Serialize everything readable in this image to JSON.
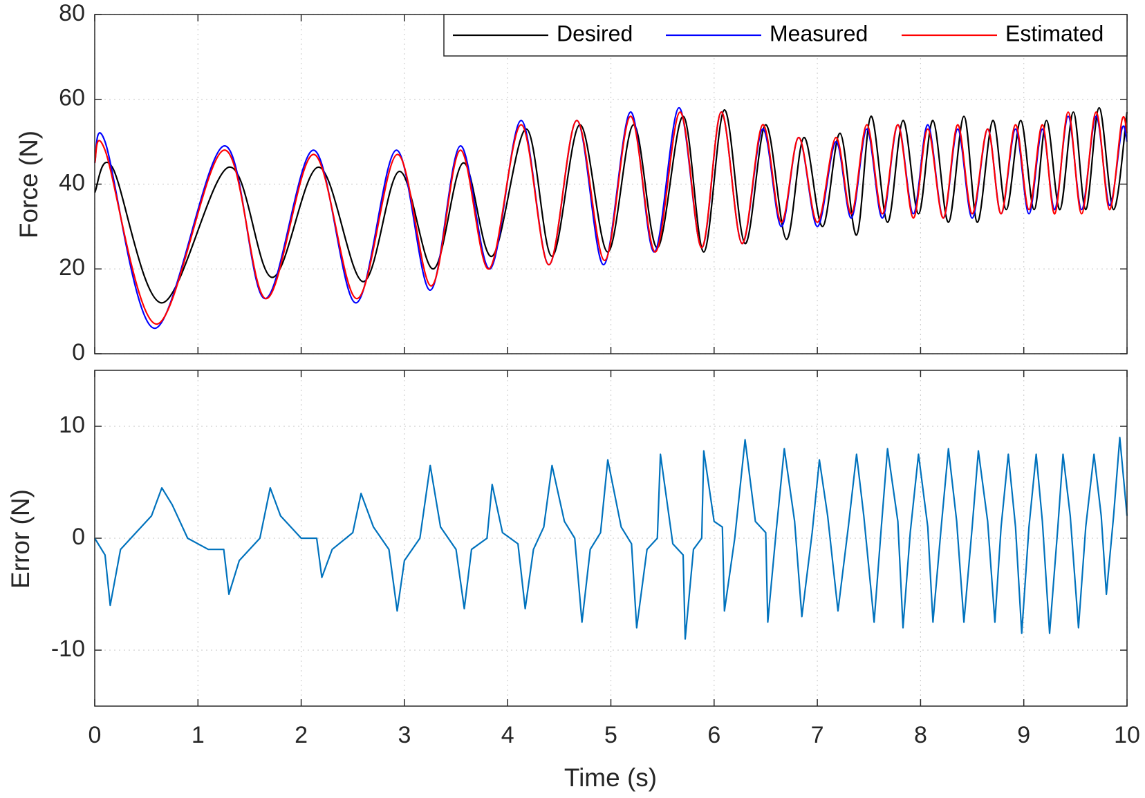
{
  "chart_data": [
    {
      "type": "line",
      "ylabel": "Force (N)",
      "xlim": [
        0,
        10
      ],
      "ylim": [
        0,
        80
      ],
      "yticks": [
        0,
        20,
        40,
        60,
        80
      ],
      "grid": true,
      "legend": "upper right",
      "series": [
        {
          "name": "Desired",
          "color": "#000000",
          "x": [
            0,
            0.17,
            0.65,
            1.3,
            1.72,
            2.17,
            2.6,
            2.95,
            3.28,
            3.57,
            3.85,
            4.18,
            4.43,
            4.7,
            4.97,
            5.22,
            5.45,
            5.7,
            5.9,
            6.1,
            6.3,
            6.5,
            6.7,
            6.87,
            7.05,
            7.22,
            7.38,
            7.52,
            7.68,
            7.83,
            7.98,
            8.12,
            8.27,
            8.42,
            8.55,
            8.7,
            8.83,
            8.97,
            9.1,
            9.22,
            9.35,
            9.48,
            9.6,
            9.73,
            9.87,
            10
          ],
          "values": [
            38,
            44,
            12,
            44,
            18,
            44,
            17,
            43,
            20,
            45,
            23,
            53,
            23,
            54,
            24,
            54,
            25,
            56,
            24,
            57.5,
            26,
            54,
            27,
            51,
            30,
            52,
            28,
            56,
            31,
            55,
            33,
            55,
            31,
            56,
            31,
            55,
            34,
            55,
            34,
            55,
            34,
            57,
            34,
            58,
            34,
            57
          ]
        },
        {
          "name": "Measured",
          "color": "#0000ff",
          "x": [
            0,
            0.1,
            0.58,
            1.25,
            1.65,
            2.12,
            2.53,
            2.92,
            3.25,
            3.54,
            3.83,
            4.13,
            4.4,
            4.67,
            4.93,
            5.19,
            5.42,
            5.66,
            5.88,
            6.07,
            6.27,
            6.47,
            6.65,
            6.82,
            7.0,
            7.18,
            7.33,
            7.48,
            7.63,
            7.78,
            7.93,
            8.07,
            8.22,
            8.36,
            8.5,
            8.65,
            8.78,
            8.92,
            9.05,
            9.18,
            9.3,
            9.43,
            9.56,
            9.7,
            9.83,
            9.95,
            10
          ],
          "values": [
            45,
            50,
            6,
            49,
            13,
            48,
            12,
            48,
            15,
            49,
            20,
            55,
            21,
            55,
            21,
            57,
            24,
            58,
            25,
            57,
            26,
            53,
            30,
            51,
            30,
            50,
            32,
            53,
            32,
            54,
            33,
            54,
            32,
            53,
            32,
            53,
            33,
            53,
            33,
            53,
            34,
            56,
            34,
            56,
            35,
            53,
            50
          ]
        },
        {
          "name": "Estimated",
          "color": "#ff0000",
          "x": [
            0,
            0.1,
            0.6,
            1.25,
            1.66,
            2.12,
            2.54,
            2.93,
            3.26,
            3.54,
            3.82,
            4.13,
            4.4,
            4.67,
            4.94,
            5.19,
            5.43,
            5.67,
            5.88,
            6.07,
            6.27,
            6.47,
            6.65,
            6.82,
            7.0,
            7.18,
            7.33,
            7.48,
            7.63,
            7.78,
            7.93,
            8.07,
            8.22,
            8.36,
            8.5,
            8.65,
            8.78,
            8.92,
            9.05,
            9.18,
            9.3,
            9.43,
            9.56,
            9.7,
            9.83,
            9.95,
            10
          ],
          "values": [
            45,
            48,
            7,
            48,
            13,
            47,
            13,
            47,
            16,
            48,
            20,
            54,
            21,
            55,
            22,
            56,
            24,
            57,
            25,
            57,
            26,
            54,
            31,
            51,
            31,
            51,
            33,
            54,
            33,
            54,
            32,
            53,
            32,
            54,
            33,
            53,
            33,
            54,
            34,
            54,
            33,
            57,
            33,
            57,
            34,
            55,
            52
          ]
        }
      ]
    },
    {
      "type": "line",
      "xlabel": "Time (s)",
      "ylabel": "Error (N)",
      "xlim": [
        0,
        10
      ],
      "ylim": [
        -15,
        15
      ],
      "xticks": [
        0,
        1,
        2,
        3,
        4,
        5,
        6,
        7,
        8,
        9,
        10
      ],
      "yticks": [
        -10,
        0,
        10
      ],
      "grid": true,
      "series": [
        {
          "name": "Error",
          "color": "#0072bd",
          "x": [
            0,
            0.1,
            0.15,
            0.25,
            0.4,
            0.55,
            0.65,
            0.75,
            0.9,
            1.1,
            1.25,
            1.3,
            1.4,
            1.6,
            1.7,
            1.8,
            2.0,
            2.15,
            2.2,
            2.3,
            2.5,
            2.58,
            2.7,
            2.85,
            2.93,
            3.0,
            3.15,
            3.25,
            3.35,
            3.5,
            3.58,
            3.65,
            3.8,
            3.85,
            3.95,
            4.1,
            4.17,
            4.25,
            4.35,
            4.43,
            4.55,
            4.65,
            4.72,
            4.8,
            4.9,
            4.97,
            5.1,
            5.2,
            5.25,
            5.35,
            5.45,
            5.48,
            5.6,
            5.7,
            5.72,
            5.8,
            5.88,
            5.9,
            6.0,
            6.08,
            6.1,
            6.2,
            6.3,
            6.4,
            6.5,
            6.52,
            6.6,
            6.68,
            6.78,
            6.85,
            6.95,
            7.02,
            7.1,
            7.2,
            7.3,
            7.38,
            7.45,
            7.55,
            7.62,
            7.68,
            7.78,
            7.83,
            7.9,
            7.98,
            8.07,
            8.12,
            8.2,
            8.27,
            8.35,
            8.42,
            8.5,
            8.56,
            8.65,
            8.72,
            8.78,
            8.85,
            8.92,
            8.98,
            9.05,
            9.12,
            9.18,
            9.25,
            9.33,
            9.38,
            9.45,
            9.53,
            9.6,
            9.68,
            9.75,
            9.8,
            9.87,
            9.93,
            10.0
          ],
          "values": [
            0,
            -1.5,
            -6,
            -1,
            0.5,
            2,
            4.5,
            3,
            0,
            -1,
            -1,
            -5,
            -2,
            0,
            4.5,
            2,
            0,
            0,
            -3.5,
            -1,
            0.5,
            4,
            1,
            -1,
            -6.5,
            -2,
            0,
            6.5,
            1,
            -1,
            -6.3,
            -1,
            0,
            4.8,
            0.5,
            -0.5,
            -6.3,
            -1,
            1,
            6.5,
            1.5,
            0,
            -7.5,
            -1,
            0.5,
            7,
            1,
            -0.5,
            -8,
            -1,
            0,
            7.5,
            -0.5,
            -1.5,
            -9,
            -1,
            0,
            7.8,
            1.5,
            1,
            -6.5,
            0,
            8.8,
            1.5,
            0.5,
            -7.5,
            0.5,
            8,
            1.5,
            -7,
            0.5,
            7,
            2,
            -6.5,
            1,
            7.5,
            2,
            -7.5,
            1,
            8,
            1.5,
            -8,
            0.5,
            7.5,
            1,
            -7.5,
            1,
            8,
            1.5,
            -7.5,
            1,
            7.8,
            1.5,
            -7.5,
            1,
            7.5,
            1,
            -8.5,
            1,
            7.5,
            1.5,
            -8.5,
            1,
            7.5,
            2,
            -8,
            1,
            7.5,
            2,
            -5,
            2,
            9,
            2
          ]
        }
      ]
    }
  ]
}
